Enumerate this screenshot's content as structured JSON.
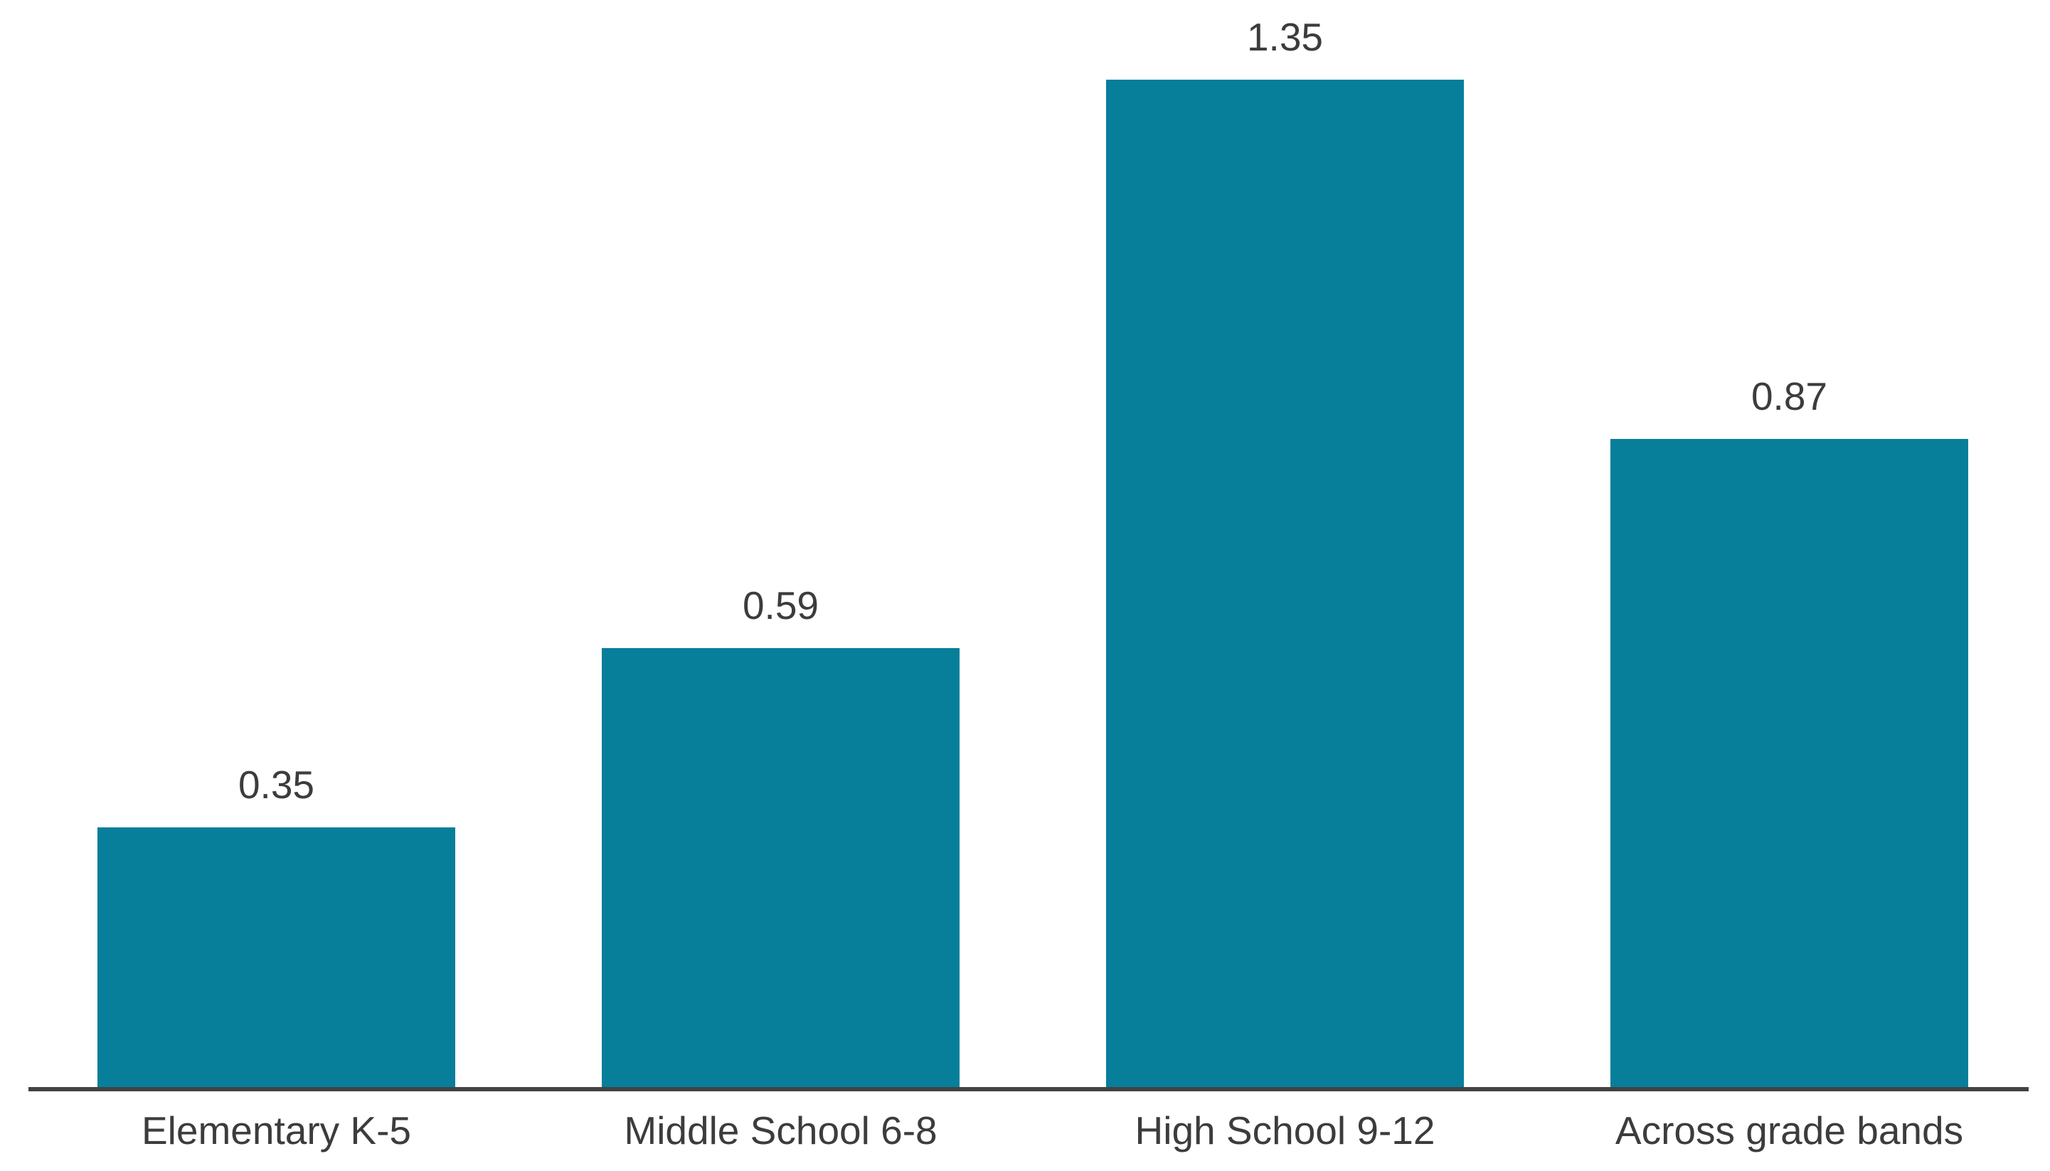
{
  "chart_data": {
    "type": "bar",
    "title": "",
    "xlabel": "",
    "ylabel": "",
    "categories": [
      "Elementary K-5",
      "Middle School 6-8",
      "High School 9-12",
      "Across grade bands"
    ],
    "values": [
      0.35,
      0.59,
      1.35,
      0.87
    ],
    "value_labels": [
      "0.35",
      "0.59",
      "1.35",
      "0.87"
    ],
    "ylim": [
      0,
      1.42
    ],
    "grid": false,
    "legend": false,
    "data_labels_position": "above-bars",
    "bar_color": "#077e9a",
    "text_color": "#3c3c3c",
    "axis_color": "#424242"
  }
}
